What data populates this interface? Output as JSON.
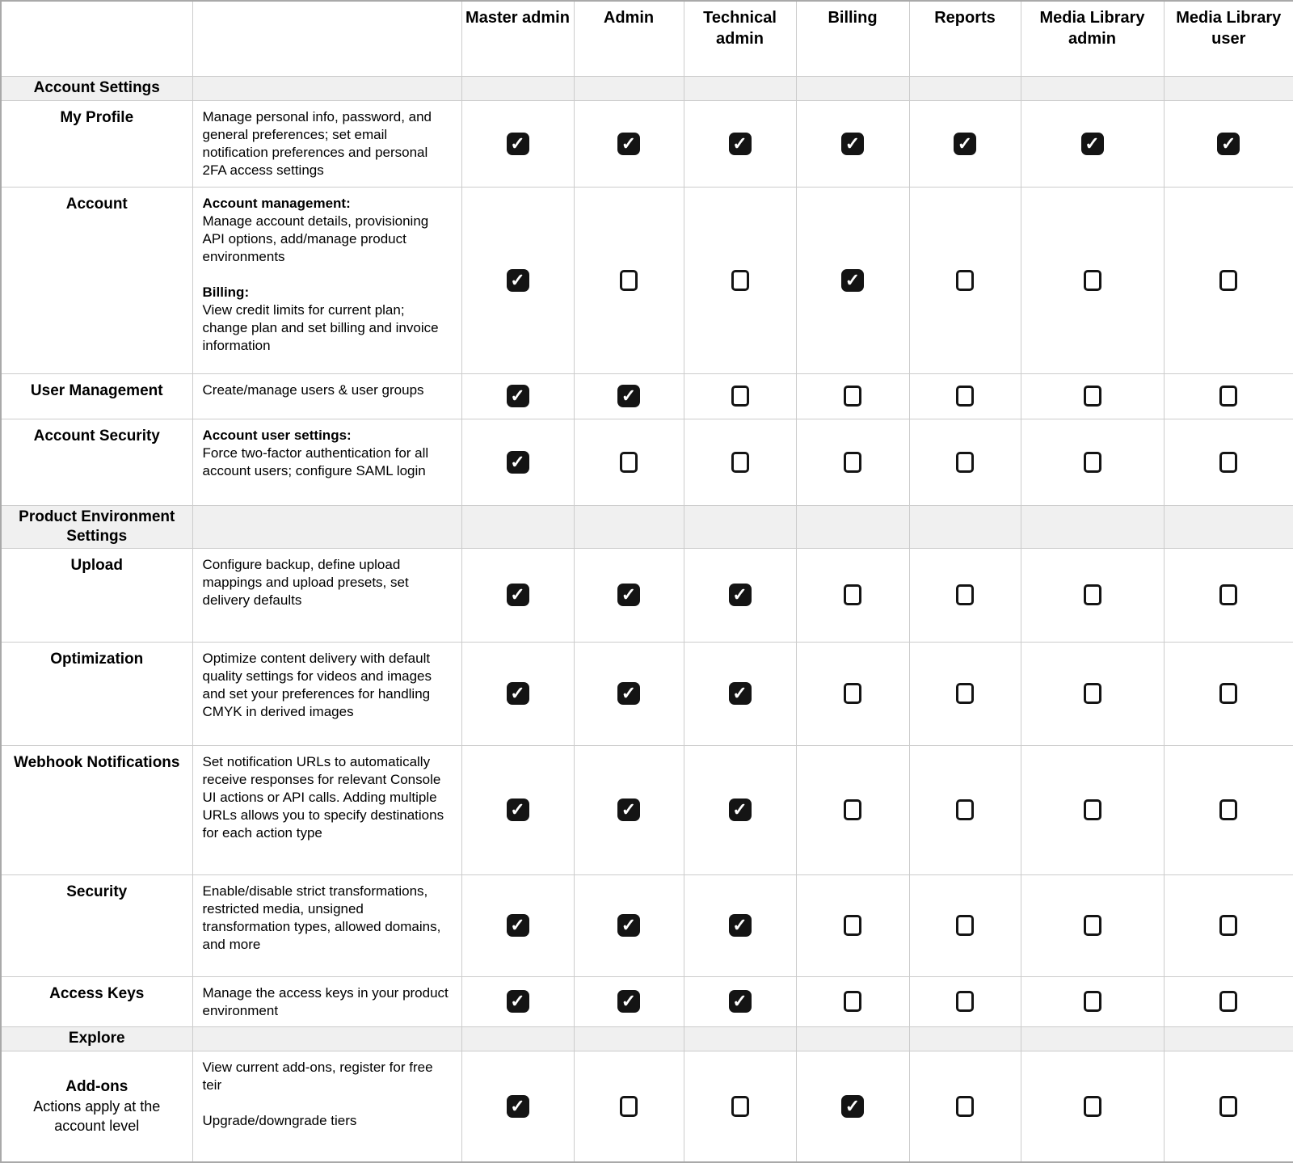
{
  "icons": {
    "check": "✓",
    "checked_box_name": "checkbox-checked-icon",
    "unchecked_box_name": "checkbox-unchecked-icon"
  },
  "colors": {
    "section_background": "#f0f0f0",
    "grid_border": "#cccccc",
    "checkbox_fill": "#141414",
    "check_mark": "#ffffff"
  },
  "table": {
    "columns": [
      "Master admin",
      "Admin",
      "Technical admin",
      "Billing",
      "Reports",
      "Media Library admin",
      "Media Library user"
    ],
    "rows": [
      {
        "type": "section",
        "label": "Account Settings"
      },
      {
        "type": "item",
        "name": "My Profile",
        "desc": [
          {
            "text": "Manage personal info, password, and general preferences; set email notification preferences and personal 2FA access settings"
          }
        ],
        "checks": [
          true,
          true,
          true,
          true,
          true,
          true,
          true
        ]
      },
      {
        "type": "item",
        "name": "Account",
        "desc": [
          {
            "text": "Account management:",
            "bold": true
          },
          {
            "text": "Manage account details, provisioning API options, add/manage product environments"
          },
          {
            "text": ""
          },
          {
            "text": "Billing:",
            "bold": true
          },
          {
            "text": "View credit limits for current plan; change plan and set billing and invoice information"
          }
        ],
        "checks": [
          true,
          false,
          false,
          true,
          false,
          false,
          false
        ]
      },
      {
        "type": "item",
        "name": "User Management",
        "desc": [
          {
            "text": "Create/manage users & user groups"
          }
        ],
        "checks": [
          true,
          true,
          false,
          false,
          false,
          false,
          false
        ]
      },
      {
        "type": "item",
        "name": "Account Security",
        "desc": [
          {
            "text": "Account user settings:",
            "bold": true
          },
          {
            "text": "Force two-factor authentication for all account users; configure SAML login"
          }
        ],
        "checks": [
          true,
          false,
          false,
          false,
          false,
          false,
          false
        ]
      },
      {
        "type": "section",
        "label": "Product Environment Settings"
      },
      {
        "type": "item",
        "name": "Upload",
        "desc": [
          {
            "text": "Configure backup, define upload mappings and upload presets, set delivery defaults"
          }
        ],
        "checks": [
          true,
          true,
          true,
          false,
          false,
          false,
          false
        ]
      },
      {
        "type": "item",
        "name": "Optimization",
        "desc": [
          {
            "text": "Optimize content delivery with default quality settings for videos and images and set your preferences for handling CMYK in derived images"
          }
        ],
        "checks": [
          true,
          true,
          true,
          false,
          false,
          false,
          false
        ]
      },
      {
        "type": "item",
        "name": "Webhook Notifications",
        "desc": [
          {
            "text": "Set notification URLs to automatically receive responses for relevant Console UI actions or API calls. Adding multiple URLs allows you to specify destinations for each action type"
          }
        ],
        "checks": [
          true,
          true,
          true,
          false,
          false,
          false,
          false
        ]
      },
      {
        "type": "item",
        "name": "Security",
        "desc": [
          {
            "text": "Enable/disable strict transformations, restricted media, unsigned transformation types, allowed domains, and more"
          }
        ],
        "checks": [
          true,
          true,
          true,
          false,
          false,
          false,
          false
        ]
      },
      {
        "type": "item",
        "name": "Access Keys",
        "desc": [
          {
            "text": "Manage the access keys in your product environment"
          }
        ],
        "checks": [
          true,
          true,
          true,
          false,
          false,
          false,
          false
        ]
      },
      {
        "type": "section",
        "label": "Explore"
      },
      {
        "type": "item",
        "name": "Add-ons",
        "note": "Actions apply at the account level",
        "desc": [
          {
            "text": "View current add-ons, register for free teir"
          },
          {
            "text": ""
          },
          {
            "text": "Upgrade/downgrade tiers"
          }
        ],
        "checks": [
          true,
          false,
          false,
          true,
          false,
          false,
          false
        ]
      }
    ]
  }
}
